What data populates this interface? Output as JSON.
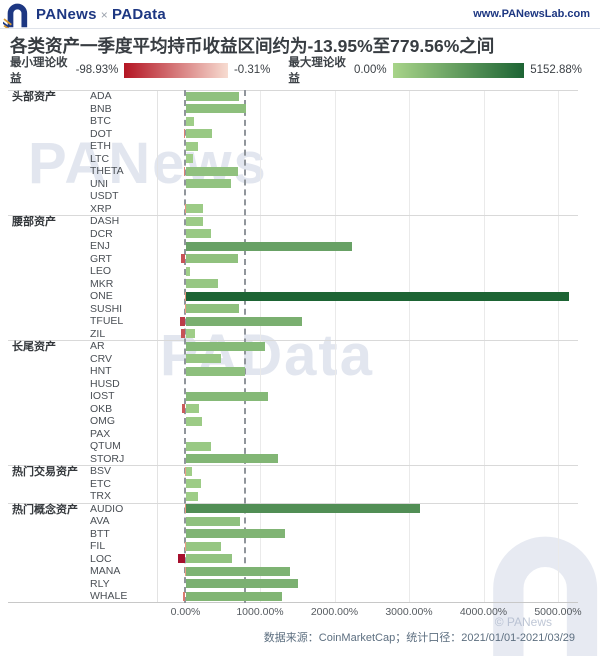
{
  "header": {
    "brand_left": "PANews",
    "brand_sep": "×",
    "brand_right": "PAData",
    "site_url": "www.PANewsLab.com"
  },
  "title": "各类资产一季度平均持币收益区间约为-13.95%至779.56%之间",
  "legend": {
    "min_label": "最小理论收益",
    "min_start": "-98.93%",
    "min_end": "-0.31%",
    "max_label": "最大理论收益",
    "max_start": "0.00%",
    "max_end": "5152.88%"
  },
  "footer": {
    "source": "数据来源：CoinMarketCap；统计口径：2021/01/01-2021/03/29"
  },
  "watermarks": {
    "mid1": "PANews",
    "mid2": "PAData",
    "corner": "© PANews"
  },
  "colors": {
    "brand_navy": "#1d3782",
    "accent_gold": "#d99b32",
    "green_light": "#a2d08a",
    "green_dark": "#1d6434",
    "red_light": "#f0a98c",
    "red_dark": "#a50f2d",
    "legend_red_start": "#b41523",
    "legend_red_end": "#f7dcd1",
    "legend_green_start": "#a8d489",
    "legend_green_end": "#1d6434"
  },
  "chart_data": {
    "type": "bar",
    "orientation": "horizontal",
    "title": "各类资产一季度平均持币收益区间约为-13.95%至779.56%之间",
    "value_unit": "%",
    "x_ticks": [
      {
        "label": "0.00%",
        "value": 0
      },
      {
        "label": "1000.00%",
        "value": 1000
      },
      {
        "label": "2000.00%",
        "value": 2000
      },
      {
        "label": "3000.00%",
        "value": 3000
      },
      {
        "label": "4000.00%",
        "value": 4000
      },
      {
        "label": "5000.00%",
        "value": 5000
      }
    ],
    "x_range_pct": [
      -100,
      5152.88
    ],
    "avg_range_lines_pct": [
      -13.95,
      779.56
    ],
    "min_scale_pct": [
      -98.93,
      -0.31
    ],
    "max_scale_pct": [
      0.0,
      5152.88
    ],
    "grid": true,
    "groups": [
      {
        "label": "头部资产",
        "assets": [
          {
            "name": "ADA",
            "min": -3,
            "max": 720
          },
          {
            "name": "BNB",
            "min": -2,
            "max": 815
          },
          {
            "name": "BTC",
            "min": -2,
            "max": 115
          },
          {
            "name": "DOT",
            "min": -25,
            "max": 355
          },
          {
            "name": "ETH",
            "min": -2,
            "max": 172
          },
          {
            "name": "LTC",
            "min": -4,
            "max": 95
          },
          {
            "name": "THETA",
            "min": -25,
            "max": 710
          },
          {
            "name": "UNI",
            "min": -3,
            "max": 615
          },
          {
            "name": "USDT",
            "min": -0.31,
            "max": 0.5
          },
          {
            "name": "XRP",
            "min": -12,
            "max": 240
          }
        ]
      },
      {
        "label": "腰部资产",
        "assets": [
          {
            "name": "DASH",
            "min": -4,
            "max": 230
          },
          {
            "name": "DCR",
            "min": -4,
            "max": 345
          },
          {
            "name": "ENJ",
            "min": -6,
            "max": 2230
          },
          {
            "name": "GRT",
            "min": -55,
            "max": 710
          },
          {
            "name": "LEO",
            "min": -1,
            "max": 60
          },
          {
            "name": "MKR",
            "min": -4,
            "max": 430
          },
          {
            "name": "ONE",
            "min": -12,
            "max": 5152.88
          },
          {
            "name": "SUSHI",
            "min": -8,
            "max": 720
          },
          {
            "name": "TFUEL",
            "min": -70,
            "max": 1560
          },
          {
            "name": "ZIL",
            "min": -55,
            "max": 130
          }
        ]
      },
      {
        "label": "长尾资产",
        "assets": [
          {
            "name": "AR",
            "min": -6,
            "max": 1070
          },
          {
            "name": "CRV",
            "min": -5,
            "max": 480
          },
          {
            "name": "HNT",
            "min": -4,
            "max": 800
          },
          {
            "name": "HUSD",
            "min": -0.31,
            "max": 1
          },
          {
            "name": "IOST",
            "min": -6,
            "max": 1110
          },
          {
            "name": "OKB",
            "min": -50,
            "max": 185
          },
          {
            "name": "OMG",
            "min": -5,
            "max": 225
          },
          {
            "name": "PAX",
            "min": -0.31,
            "max": 1
          },
          {
            "name": "QTUM",
            "min": -5,
            "max": 345
          },
          {
            "name": "STORJ",
            "min": -6,
            "max": 1240
          }
        ]
      },
      {
        "label": "热门交易资产",
        "assets": [
          {
            "name": "BSV",
            "min": -8,
            "max": 90
          },
          {
            "name": "ETC",
            "min": -4,
            "max": 210
          },
          {
            "name": "TRX",
            "min": -4,
            "max": 165
          }
        ]
      },
      {
        "label": "热门概念资产",
        "assets": [
          {
            "name": "AUDIO",
            "min": -10,
            "max": 3150
          },
          {
            "name": "AVA",
            "min": -5,
            "max": 730
          },
          {
            "name": "BTT",
            "min": -6,
            "max": 1335
          },
          {
            "name": "FIL",
            "min": -8,
            "max": 470
          },
          {
            "name": "LOC",
            "min": -98.93,
            "max": 620
          },
          {
            "name": "MANA",
            "min": -7,
            "max": 1400
          },
          {
            "name": "RLY",
            "min": -5,
            "max": 1505
          },
          {
            "name": "WHALE",
            "min": -30,
            "max": 1290
          }
        ]
      }
    ]
  }
}
